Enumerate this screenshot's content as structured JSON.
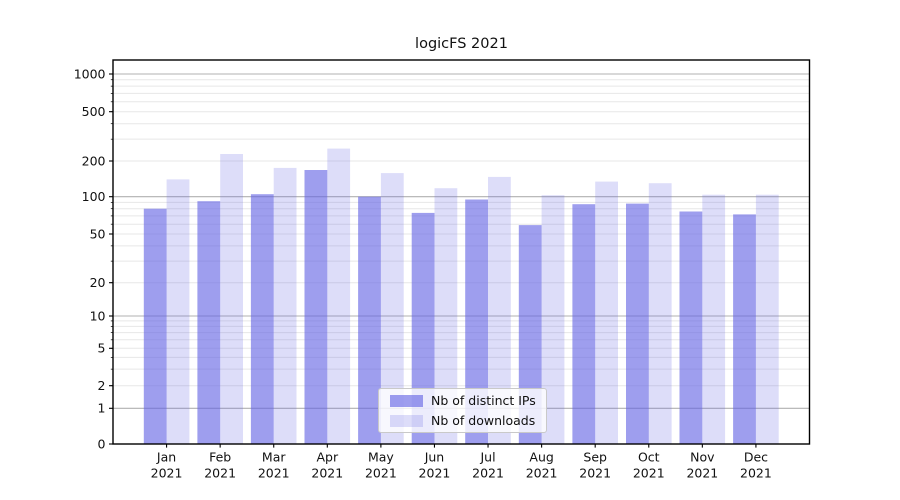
{
  "chart_data": {
    "type": "bar",
    "title": "logicFS 2021",
    "year": "2021",
    "months": [
      "Jan",
      "Feb",
      "Mar",
      "Apr",
      "May",
      "Jun",
      "Jul",
      "Aug",
      "Sep",
      "Oct",
      "Nov",
      "Dec"
    ],
    "series": [
      {
        "name": "Nb of distinct IPs",
        "color": "#6262e3",
        "alpha": 0.62,
        "values": [
          80,
          92,
          105,
          168,
          100,
          74,
          95,
          59,
          87,
          88,
          76,
          72
        ]
      },
      {
        "name": "Nb of downloads",
        "color": "#6262e3",
        "alpha": 0.22,
        "values": [
          140,
          228,
          175,
          252,
          158,
          118,
          147,
          103,
          134,
          130,
          104,
          104
        ]
      }
    ],
    "yscale": "symlog",
    "yticks": [
      0,
      1,
      2,
      5,
      10,
      20,
      50,
      100,
      200,
      500,
      1000
    ],
    "ylim": [
      0,
      1300
    ],
    "grid": true,
    "legend_position": "lower center",
    "colors": {
      "grid_major": "#b0b0b0",
      "grid_minor": "#e7e7e7",
      "axis": "#000000",
      "background": "#ffffff"
    }
  }
}
